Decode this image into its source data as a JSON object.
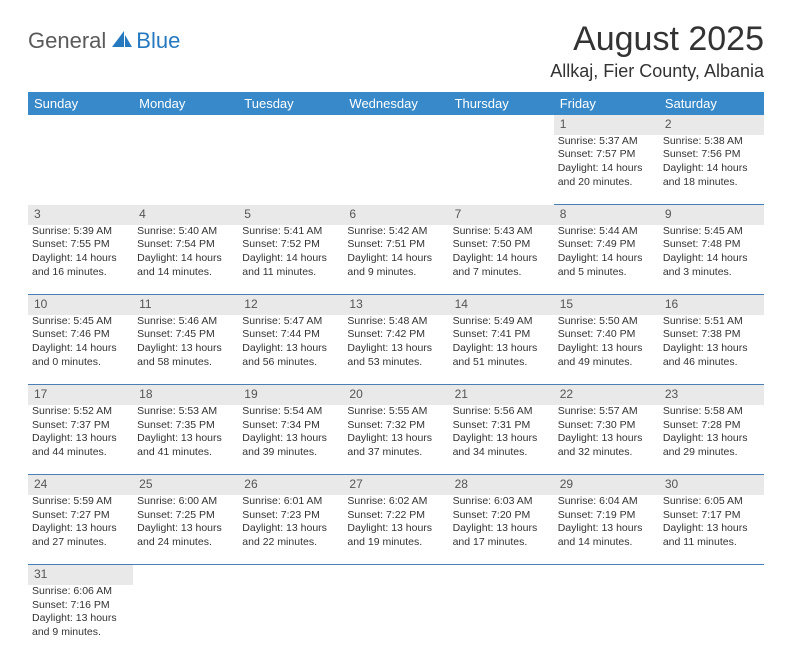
{
  "logo": {
    "general": "General",
    "blue": "Blue"
  },
  "title": "August 2025",
  "subtitle": "Allkaj, Fier County, Albania",
  "columns": [
    "Sunday",
    "Monday",
    "Tuesday",
    "Wednesday",
    "Thursday",
    "Friday",
    "Saturday"
  ],
  "colors": {
    "header_bg": "#3789ca",
    "header_text": "#ffffff",
    "daynum_bg": "#e9e9e9",
    "cell_border": "#4a7fb5",
    "text": "#333333"
  },
  "weeks": [
    {
      "nums": [
        "",
        "",
        "",
        "",
        "",
        "1",
        "2"
      ],
      "cells": [
        null,
        null,
        null,
        null,
        null,
        {
          "sunrise": "5:37 AM",
          "sunset": "7:57 PM",
          "daylight": "14 hours and 20 minutes."
        },
        {
          "sunrise": "5:38 AM",
          "sunset": "7:56 PM",
          "daylight": "14 hours and 18 minutes."
        }
      ]
    },
    {
      "nums": [
        "3",
        "4",
        "5",
        "6",
        "7",
        "8",
        "9"
      ],
      "cells": [
        {
          "sunrise": "5:39 AM",
          "sunset": "7:55 PM",
          "daylight": "14 hours and 16 minutes."
        },
        {
          "sunrise": "5:40 AM",
          "sunset": "7:54 PM",
          "daylight": "14 hours and 14 minutes."
        },
        {
          "sunrise": "5:41 AM",
          "sunset": "7:52 PM",
          "daylight": "14 hours and 11 minutes."
        },
        {
          "sunrise": "5:42 AM",
          "sunset": "7:51 PM",
          "daylight": "14 hours and 9 minutes."
        },
        {
          "sunrise": "5:43 AM",
          "sunset": "7:50 PM",
          "daylight": "14 hours and 7 minutes."
        },
        {
          "sunrise": "5:44 AM",
          "sunset": "7:49 PM",
          "daylight": "14 hours and 5 minutes."
        },
        {
          "sunrise": "5:45 AM",
          "sunset": "7:48 PM",
          "daylight": "14 hours and 3 minutes."
        }
      ]
    },
    {
      "nums": [
        "10",
        "11",
        "12",
        "13",
        "14",
        "15",
        "16"
      ],
      "cells": [
        {
          "sunrise": "5:45 AM",
          "sunset": "7:46 PM",
          "daylight": "14 hours and 0 minutes."
        },
        {
          "sunrise": "5:46 AM",
          "sunset": "7:45 PM",
          "daylight": "13 hours and 58 minutes."
        },
        {
          "sunrise": "5:47 AM",
          "sunset": "7:44 PM",
          "daylight": "13 hours and 56 minutes."
        },
        {
          "sunrise": "5:48 AM",
          "sunset": "7:42 PM",
          "daylight": "13 hours and 53 minutes."
        },
        {
          "sunrise": "5:49 AM",
          "sunset": "7:41 PM",
          "daylight": "13 hours and 51 minutes."
        },
        {
          "sunrise": "5:50 AM",
          "sunset": "7:40 PM",
          "daylight": "13 hours and 49 minutes."
        },
        {
          "sunrise": "5:51 AM",
          "sunset": "7:38 PM",
          "daylight": "13 hours and 46 minutes."
        }
      ]
    },
    {
      "nums": [
        "17",
        "18",
        "19",
        "20",
        "21",
        "22",
        "23"
      ],
      "cells": [
        {
          "sunrise": "5:52 AM",
          "sunset": "7:37 PM",
          "daylight": "13 hours and 44 minutes."
        },
        {
          "sunrise": "5:53 AM",
          "sunset": "7:35 PM",
          "daylight": "13 hours and 41 minutes."
        },
        {
          "sunrise": "5:54 AM",
          "sunset": "7:34 PM",
          "daylight": "13 hours and 39 minutes."
        },
        {
          "sunrise": "5:55 AM",
          "sunset": "7:32 PM",
          "daylight": "13 hours and 37 minutes."
        },
        {
          "sunrise": "5:56 AM",
          "sunset": "7:31 PM",
          "daylight": "13 hours and 34 minutes."
        },
        {
          "sunrise": "5:57 AM",
          "sunset": "7:30 PM",
          "daylight": "13 hours and 32 minutes."
        },
        {
          "sunrise": "5:58 AM",
          "sunset": "7:28 PM",
          "daylight": "13 hours and 29 minutes."
        }
      ]
    },
    {
      "nums": [
        "24",
        "25",
        "26",
        "27",
        "28",
        "29",
        "30"
      ],
      "cells": [
        {
          "sunrise": "5:59 AM",
          "sunset": "7:27 PM",
          "daylight": "13 hours and 27 minutes."
        },
        {
          "sunrise": "6:00 AM",
          "sunset": "7:25 PM",
          "daylight": "13 hours and 24 minutes."
        },
        {
          "sunrise": "6:01 AM",
          "sunset": "7:23 PM",
          "daylight": "13 hours and 22 minutes."
        },
        {
          "sunrise": "6:02 AM",
          "sunset": "7:22 PM",
          "daylight": "13 hours and 19 minutes."
        },
        {
          "sunrise": "6:03 AM",
          "sunset": "7:20 PM",
          "daylight": "13 hours and 17 minutes."
        },
        {
          "sunrise": "6:04 AM",
          "sunset": "7:19 PM",
          "daylight": "13 hours and 14 minutes."
        },
        {
          "sunrise": "6:05 AM",
          "sunset": "7:17 PM",
          "daylight": "13 hours and 11 minutes."
        }
      ]
    },
    {
      "nums": [
        "31",
        "",
        "",
        "",
        "",
        "",
        ""
      ],
      "cells": [
        {
          "sunrise": "6:06 AM",
          "sunset": "7:16 PM",
          "daylight": "13 hours and 9 minutes."
        },
        null,
        null,
        null,
        null,
        null,
        null
      ]
    }
  ],
  "labels": {
    "sunrise": "Sunrise: ",
    "sunset": "Sunset: ",
    "daylight": "Daylight: "
  }
}
